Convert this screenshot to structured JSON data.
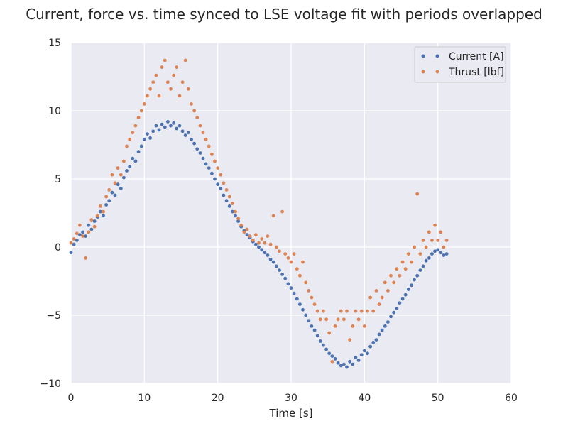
{
  "chart_data": {
    "type": "scatter",
    "title": "Current, force vs. time synced to LSE voltage fit with periods overlapped",
    "xlabel": "Time [s]",
    "ylabel": "",
    "xlim": [
      0,
      60
    ],
    "ylim": [
      -10,
      15
    ],
    "xticks": [
      0,
      10,
      20,
      30,
      40,
      50,
      60
    ],
    "yticks": [
      -10,
      -5,
      0,
      5,
      10,
      15
    ],
    "xtick_labels": [
      "0",
      "10",
      "20",
      "30",
      "40",
      "50",
      "60"
    ],
    "ytick_labels": [
      "−10",
      "−5",
      "0",
      "5",
      "10",
      "15"
    ],
    "grid": true,
    "legend_position": "top-right",
    "series": [
      {
        "name": "Current [A]",
        "color": "#4c72b0",
        "points": [
          [
            0.0,
            -0.4
          ],
          [
            0.4,
            0.2
          ],
          [
            0.8,
            0.5
          ],
          [
            1.2,
            0.9
          ],
          [
            1.6,
            1.1
          ],
          [
            2.0,
            0.8
          ],
          [
            2.4,
            1.6
          ],
          [
            2.8,
            1.3
          ],
          [
            3.2,
            1.9
          ],
          [
            3.6,
            2.2
          ],
          [
            4.0,
            2.6
          ],
          [
            4.4,
            2.3
          ],
          [
            4.8,
            3.1
          ],
          [
            5.2,
            3.4
          ],
          [
            5.6,
            4.0
          ],
          [
            6.0,
            3.8
          ],
          [
            6.4,
            4.6
          ],
          [
            6.8,
            4.3
          ],
          [
            7.2,
            5.1
          ],
          [
            7.6,
            5.6
          ],
          [
            8.0,
            5.9
          ],
          [
            8.4,
            6.5
          ],
          [
            8.8,
            6.3
          ],
          [
            9.2,
            7.0
          ],
          [
            9.6,
            7.4
          ],
          [
            10.0,
            7.9
          ],
          [
            10.4,
            8.3
          ],
          [
            10.8,
            8.0
          ],
          [
            11.2,
            8.5
          ],
          [
            11.6,
            8.9
          ],
          [
            12.0,
            8.6
          ],
          [
            12.4,
            9.0
          ],
          [
            12.8,
            8.8
          ],
          [
            13.2,
            9.2
          ],
          [
            13.6,
            8.9
          ],
          [
            14.0,
            9.1
          ],
          [
            14.4,
            8.7
          ],
          [
            14.8,
            8.9
          ],
          [
            15.2,
            8.5
          ],
          [
            15.6,
            8.2
          ],
          [
            16.0,
            8.4
          ],
          [
            16.4,
            7.9
          ],
          [
            16.8,
            7.6
          ],
          [
            17.2,
            7.2
          ],
          [
            17.6,
            6.9
          ],
          [
            18.0,
            6.5
          ],
          [
            18.4,
            6.1
          ],
          [
            18.8,
            5.8
          ],
          [
            19.2,
            5.4
          ],
          [
            19.6,
            5.0
          ],
          [
            20.0,
            4.6
          ],
          [
            20.4,
            4.3
          ],
          [
            20.8,
            3.8
          ],
          [
            21.2,
            3.4
          ],
          [
            21.6,
            3.0
          ],
          [
            22.0,
            2.6
          ],
          [
            22.4,
            2.3
          ],
          [
            22.8,
            1.9
          ],
          [
            23.2,
            1.5
          ],
          [
            23.6,
            1.2
          ],
          [
            24.0,
            0.9
          ],
          [
            24.4,
            0.7
          ],
          [
            24.8,
            0.4
          ],
          [
            25.2,
            0.2
          ],
          [
            25.6,
            0.0
          ],
          [
            26.0,
            -0.2
          ],
          [
            26.4,
            -0.4
          ],
          [
            26.8,
            -0.6
          ],
          [
            27.2,
            -0.9
          ],
          [
            27.6,
            -1.1
          ],
          [
            28.0,
            -1.4
          ],
          [
            28.4,
            -1.7
          ],
          [
            28.8,
            -2.0
          ],
          [
            29.2,
            -2.3
          ],
          [
            29.6,
            -2.7
          ],
          [
            30.0,
            -3.0
          ],
          [
            30.4,
            -3.4
          ],
          [
            30.8,
            -3.8
          ],
          [
            31.2,
            -4.2
          ],
          [
            31.6,
            -4.6
          ],
          [
            32.0,
            -5.0
          ],
          [
            32.4,
            -5.4
          ],
          [
            32.8,
            -5.8
          ],
          [
            33.2,
            -6.1
          ],
          [
            33.6,
            -6.5
          ],
          [
            34.0,
            -6.9
          ],
          [
            34.4,
            -7.2
          ],
          [
            34.8,
            -7.5
          ],
          [
            35.2,
            -7.8
          ],
          [
            35.6,
            -8.0
          ],
          [
            36.0,
            -8.2
          ],
          [
            36.4,
            -8.5
          ],
          [
            36.8,
            -8.7
          ],
          [
            37.2,
            -8.6
          ],
          [
            37.6,
            -8.8
          ],
          [
            38.0,
            -8.4
          ],
          [
            38.4,
            -8.6
          ],
          [
            38.8,
            -8.1
          ],
          [
            39.2,
            -8.3
          ],
          [
            39.6,
            -7.9
          ],
          [
            40.0,
            -7.6
          ],
          [
            40.4,
            -7.8
          ],
          [
            40.8,
            -7.3
          ],
          [
            41.2,
            -7.0
          ],
          [
            41.6,
            -6.8
          ],
          [
            42.0,
            -6.4
          ],
          [
            42.4,
            -6.1
          ],
          [
            42.8,
            -5.8
          ],
          [
            43.2,
            -5.5
          ],
          [
            43.6,
            -5.1
          ],
          [
            44.0,
            -4.8
          ],
          [
            44.4,
            -4.5
          ],
          [
            44.8,
            -4.1
          ],
          [
            45.2,
            -3.8
          ],
          [
            45.6,
            -3.5
          ],
          [
            46.0,
            -3.1
          ],
          [
            46.4,
            -2.8
          ],
          [
            46.8,
            -2.4
          ],
          [
            47.2,
            -2.1
          ],
          [
            47.6,
            -1.7
          ],
          [
            48.0,
            -1.4
          ],
          [
            48.4,
            -1.0
          ],
          [
            48.8,
            -0.8
          ],
          [
            49.2,
            -0.5
          ],
          [
            49.6,
            -0.3
          ],
          [
            50.0,
            -0.2
          ],
          [
            50.4,
            -0.4
          ],
          [
            50.8,
            -0.6
          ],
          [
            51.2,
            -0.5
          ]
        ]
      },
      {
        "name": "Thrust [lbf]",
        "color": "#dd8452",
        "points": [
          [
            0.0,
            0.3
          ],
          [
            0.4,
            0.6
          ],
          [
            0.8,
            1.0
          ],
          [
            1.2,
            1.6
          ],
          [
            1.6,
            0.8
          ],
          [
            2.0,
            -0.8
          ],
          [
            2.4,
            1.1
          ],
          [
            2.8,
            2.0
          ],
          [
            3.2,
            1.5
          ],
          [
            3.6,
            2.3
          ],
          [
            4.0,
            3.0
          ],
          [
            4.4,
            2.6
          ],
          [
            4.8,
            3.7
          ],
          [
            5.2,
            4.2
          ],
          [
            5.6,
            5.3
          ],
          [
            6.0,
            4.7
          ],
          [
            6.4,
            5.8
          ],
          [
            6.8,
            5.3
          ],
          [
            7.2,
            6.3
          ],
          [
            7.6,
            7.4
          ],
          [
            8.0,
            7.9
          ],
          [
            8.4,
            8.4
          ],
          [
            8.8,
            8.9
          ],
          [
            9.2,
            9.5
          ],
          [
            9.6,
            10.0
          ],
          [
            10.0,
            10.5
          ],
          [
            10.4,
            11.1
          ],
          [
            10.8,
            11.6
          ],
          [
            11.2,
            12.1
          ],
          [
            11.6,
            12.6
          ],
          [
            12.0,
            11.1
          ],
          [
            12.4,
            13.2
          ],
          [
            12.8,
            13.7
          ],
          [
            13.2,
            12.1
          ],
          [
            13.6,
            11.6
          ],
          [
            14.0,
            12.6
          ],
          [
            14.4,
            13.2
          ],
          [
            14.8,
            11.1
          ],
          [
            15.2,
            12.1
          ],
          [
            15.6,
            13.7
          ],
          [
            16.0,
            11.6
          ],
          [
            16.4,
            10.5
          ],
          [
            16.8,
            10.0
          ],
          [
            17.2,
            9.5
          ],
          [
            17.6,
            8.9
          ],
          [
            18.0,
            8.4
          ],
          [
            18.4,
            7.9
          ],
          [
            18.8,
            7.4
          ],
          [
            19.2,
            6.8
          ],
          [
            19.6,
            6.3
          ],
          [
            20.0,
            5.8
          ],
          [
            20.4,
            5.3
          ],
          [
            20.8,
            4.7
          ],
          [
            21.2,
            4.2
          ],
          [
            21.6,
            3.7
          ],
          [
            22.0,
            3.2
          ],
          [
            22.4,
            2.6
          ],
          [
            22.8,
            2.1
          ],
          [
            23.2,
            1.6
          ],
          [
            23.6,
            1.1
          ],
          [
            24.0,
            1.3
          ],
          [
            24.4,
            0.8
          ],
          [
            24.8,
            0.5
          ],
          [
            25.2,
            0.9
          ],
          [
            25.6,
            0.3
          ],
          [
            26.0,
            0.6
          ],
          [
            26.4,
            0.3
          ],
          [
            26.8,
            0.8
          ],
          [
            27.2,
            0.2
          ],
          [
            27.6,
            2.3
          ],
          [
            28.0,
            0.0
          ],
          [
            28.4,
            -0.3
          ],
          [
            28.8,
            2.6
          ],
          [
            29.2,
            -0.5
          ],
          [
            29.6,
            -0.8
          ],
          [
            30.0,
            -1.1
          ],
          [
            30.4,
            -0.5
          ],
          [
            30.8,
            -1.6
          ],
          [
            31.2,
            -2.1
          ],
          [
            31.6,
            -1.1
          ],
          [
            32.0,
            -2.6
          ],
          [
            32.4,
            -3.2
          ],
          [
            32.8,
            -3.7
          ],
          [
            33.2,
            -4.2
          ],
          [
            33.6,
            -4.7
          ],
          [
            34.0,
            -5.3
          ],
          [
            34.4,
            -4.7
          ],
          [
            34.8,
            -5.3
          ],
          [
            35.2,
            -6.3
          ],
          [
            35.6,
            -8.4
          ],
          [
            36.0,
            -5.8
          ],
          [
            36.4,
            -5.3
          ],
          [
            36.8,
            -4.7
          ],
          [
            37.2,
            -5.3
          ],
          [
            37.6,
            -4.7
          ],
          [
            38.0,
            -6.8
          ],
          [
            38.4,
            -5.8
          ],
          [
            38.8,
            -4.7
          ],
          [
            39.2,
            -5.3
          ],
          [
            39.6,
            -4.7
          ],
          [
            40.0,
            -5.8
          ],
          [
            40.4,
            -4.7
          ],
          [
            40.8,
            -3.7
          ],
          [
            41.2,
            -4.7
          ],
          [
            41.6,
            -3.2
          ],
          [
            42.0,
            -4.2
          ],
          [
            42.4,
            -3.7
          ],
          [
            42.8,
            -2.6
          ],
          [
            43.2,
            -3.2
          ],
          [
            43.6,
            -2.1
          ],
          [
            44.0,
            -2.6
          ],
          [
            44.4,
            -1.6
          ],
          [
            44.8,
            -2.1
          ],
          [
            45.2,
            -1.1
          ],
          [
            45.6,
            -1.6
          ],
          [
            46.0,
            -0.5
          ],
          [
            46.4,
            -1.1
          ],
          [
            46.8,
            0.0
          ],
          [
            47.2,
            3.9
          ],
          [
            47.6,
            -0.5
          ],
          [
            48.0,
            0.5
          ],
          [
            48.4,
            0.0
          ],
          [
            48.8,
            1.1
          ],
          [
            49.2,
            0.5
          ],
          [
            49.6,
            1.6
          ],
          [
            50.0,
            0.5
          ],
          [
            50.4,
            1.1
          ],
          [
            50.8,
            0.0
          ],
          [
            51.2,
            0.5
          ]
        ]
      }
    ]
  }
}
